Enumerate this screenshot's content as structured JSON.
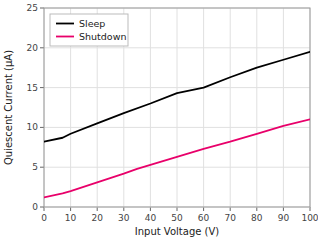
{
  "chart_data": {
    "type": "line",
    "xlabel": "Input Voltage (V)",
    "ylabel": "Quiescent Current (μA)",
    "xlim": [
      0,
      100
    ],
    "ylim": [
      0,
      25
    ],
    "xticks": [
      0,
      10,
      20,
      30,
      40,
      50,
      60,
      70,
      80,
      90,
      100
    ],
    "yticks": [
      0,
      5,
      10,
      15,
      20,
      25
    ],
    "grid": true,
    "legend": "top-left",
    "series": [
      {
        "name": "Sleep",
        "color": "#000000",
        "x": [
          0,
          7,
          10,
          20,
          30,
          40,
          50,
          60,
          70,
          80,
          90,
          100
        ],
        "values": [
          8.2,
          8.7,
          9.2,
          10.5,
          11.8,
          13.0,
          14.3,
          15.0,
          16.3,
          17.5,
          18.5,
          19.5
        ]
      },
      {
        "name": "Shutdown",
        "color": "#e8006a",
        "x": [
          0,
          7,
          10,
          20,
          30,
          35,
          40,
          50,
          60,
          70,
          80,
          90,
          100
        ],
        "values": [
          1.2,
          1.7,
          2.0,
          3.1,
          4.2,
          4.8,
          5.3,
          6.3,
          7.3,
          8.2,
          9.2,
          10.2,
          11.0
        ]
      }
    ]
  }
}
